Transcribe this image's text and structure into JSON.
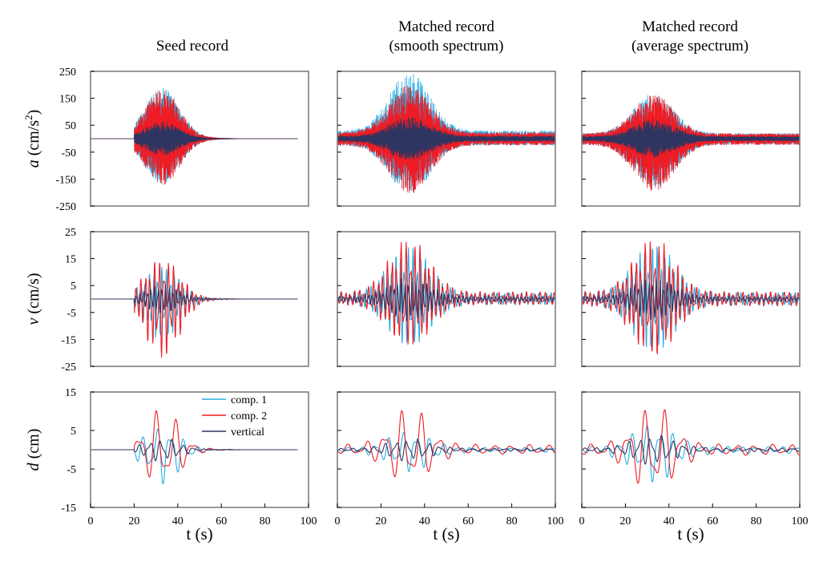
{
  "columns": [
    {
      "title_lines": [
        "Seed record"
      ]
    },
    {
      "title_lines": [
        "Matched record",
        "(smooth spectrum)"
      ]
    },
    {
      "title_lines": [
        "Matched record",
        "(average spectrum)"
      ]
    }
  ],
  "colors": {
    "comp1": "#29aee3",
    "comp2": "#ee1c25",
    "vertical": "#2e3560",
    "frame": "#7f7f7f"
  },
  "chart_data": [
    {
      "type": "line",
      "rows": [
        {
          "ylabel_sym": "a",
          "ylabel_unit": "(cm/s",
          "ylabel_sup": "2",
          "ylabel_close": ")",
          "ylim": [
            -250,
            250
          ],
          "yticks": [
            "250",
            "150",
            "50",
            "-50",
            "-150",
            "-250"
          ],
          "ytick_values": [
            250,
            150,
            50,
            -50,
            -150,
            -250
          ]
        },
        {
          "ylabel_sym": "v",
          "ylabel_unit": "(cm/s)",
          "ylabel_sup": "",
          "ylabel_close": "",
          "ylim": [
            -25,
            25
          ],
          "yticks": [
            "25",
            "15",
            "5",
            "-5",
            "-15",
            "-25"
          ],
          "ytick_values": [
            25,
            15,
            5,
            -5,
            -15,
            -25
          ]
        },
        {
          "ylabel_sym": "d",
          "ylabel_unit": "(cm)",
          "ylabel_sup": "",
          "ylabel_close": "",
          "ylim": [
            -15,
            15
          ],
          "yticks": [
            "15",
            "5",
            "-5",
            "-15"
          ],
          "ytick_values": [
            15,
            5,
            -5,
            -15
          ]
        }
      ],
      "xlabel": "t (s)",
      "xlim": [
        0,
        100
      ],
      "xticks": [
        "0",
        "20",
        "40",
        "60",
        "80",
        "100"
      ],
      "xtick_values": [
        0,
        20,
        40,
        60,
        80,
        100
      ],
      "legend": {
        "position": "top-right of seed displacement panel",
        "entries": [
          {
            "name": "comp. 1",
            "color": "#29aee3"
          },
          {
            "name": "comp. 2",
            "color": "#ee1c25"
          },
          {
            "name": "vertical",
            "color": "#2e3560"
          }
        ]
      },
      "panels": [
        {
          "column": 0,
          "row": 0,
          "t_start": 0,
          "t_end": 95,
          "peak": {
            "comp1": 185,
            "comp2": 175,
            "vertical": 60
          },
          "min": {
            "comp1": -160,
            "comp2": -165
          }
        },
        {
          "column": 1,
          "row": 0,
          "t_start": 0,
          "t_end": 100,
          "peak": {
            "comp1": 245,
            "comp2": 195,
            "vertical": 80
          },
          "min": {
            "comp1": -205,
            "comp2": -200
          }
        },
        {
          "column": 2,
          "row": 0,
          "t_start": 0,
          "t_end": 100,
          "peak": {
            "comp1": 165,
            "comp2": 160,
            "vertical": 70
          },
          "min": {
            "comp1": -180,
            "comp2": -190
          }
        },
        {
          "column": 0,
          "row": 1,
          "t_start": 0,
          "t_end": 95,
          "peak": {
            "comp1": 12,
            "comp2": 15,
            "vertical": 5
          },
          "min": {
            "comp1": -15,
            "comp2": -22
          }
        },
        {
          "column": 1,
          "row": 1,
          "t_start": 0,
          "t_end": 100,
          "peak": {
            "comp1": 20,
            "comp2": 23,
            "vertical": 8
          },
          "min": {
            "comp1": -18,
            "comp2": -18
          }
        },
        {
          "column": 2,
          "row": 1,
          "t_start": 0,
          "t_end": 100,
          "peak": {
            "comp1": 21,
            "comp2": 23,
            "vertical": 8
          },
          "min": {
            "comp1": -20,
            "comp2": -22
          }
        },
        {
          "column": 0,
          "row": 2,
          "t_start": 0,
          "t_end": 95,
          "peak": {
            "comp1": 6,
            "comp2": 11,
            "vertical": 3
          },
          "min": {
            "comp1": -9,
            "comp2": -10
          }
        },
        {
          "column": 1,
          "row": 2,
          "t_start": 0,
          "t_end": 100,
          "peak": {
            "comp1": 5,
            "comp2": 11.5,
            "vertical": 3
          },
          "min": {
            "comp1": -6,
            "comp2": -9.5
          }
        },
        {
          "column": 2,
          "row": 2,
          "t_start": 0,
          "t_end": 100,
          "peak": {
            "comp1": 7,
            "comp2": 12,
            "vertical": 4
          },
          "min": {
            "comp1": -9,
            "comp2": -12
          }
        }
      ]
    }
  ]
}
